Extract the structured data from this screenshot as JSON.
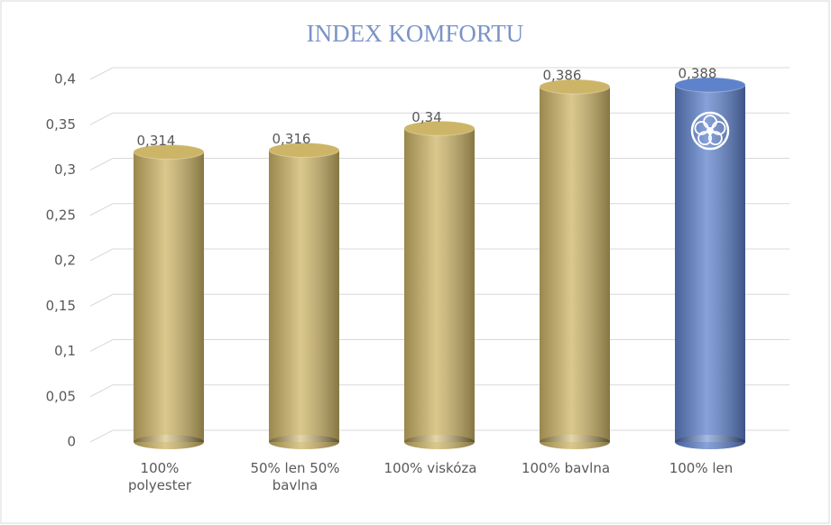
{
  "chart_data": {
    "type": "bar",
    "title": "INDEX KOMFORTU",
    "categories": [
      "100% polyester",
      "50% len 50% bavlna",
      "100% viskóza",
      "100% bavlna",
      "100% len"
    ],
    "values": [
      0.314,
      0.316,
      0.34,
      0.386,
      0.388
    ],
    "value_labels": [
      "0,314",
      "0,316",
      "0,34",
      "0,386",
      "0,388"
    ],
    "colors": [
      "#cdb567",
      "#cdb567",
      "#cdb567",
      "#cdb567",
      "#5f82cc"
    ],
    "ylim": [
      0,
      0.4
    ],
    "yticks": [
      0,
      {
        "value": 0.05,
        "label": "0,05"
      },
      {
        "value": 0.1,
        "label": "0,1"
      },
      {
        "value": 0.15,
        "label": "0,15"
      },
      {
        "value": 0.2,
        "label": "0,2"
      },
      {
        "value": 0.25,
        "label": "0,25"
      },
      {
        "value": 0.3,
        "label": "0,3"
      },
      {
        "value": 0.35,
        "label": "0,35"
      },
      {
        "value": 0.4,
        "label": "0,4"
      }
    ],
    "grid": true
  }
}
